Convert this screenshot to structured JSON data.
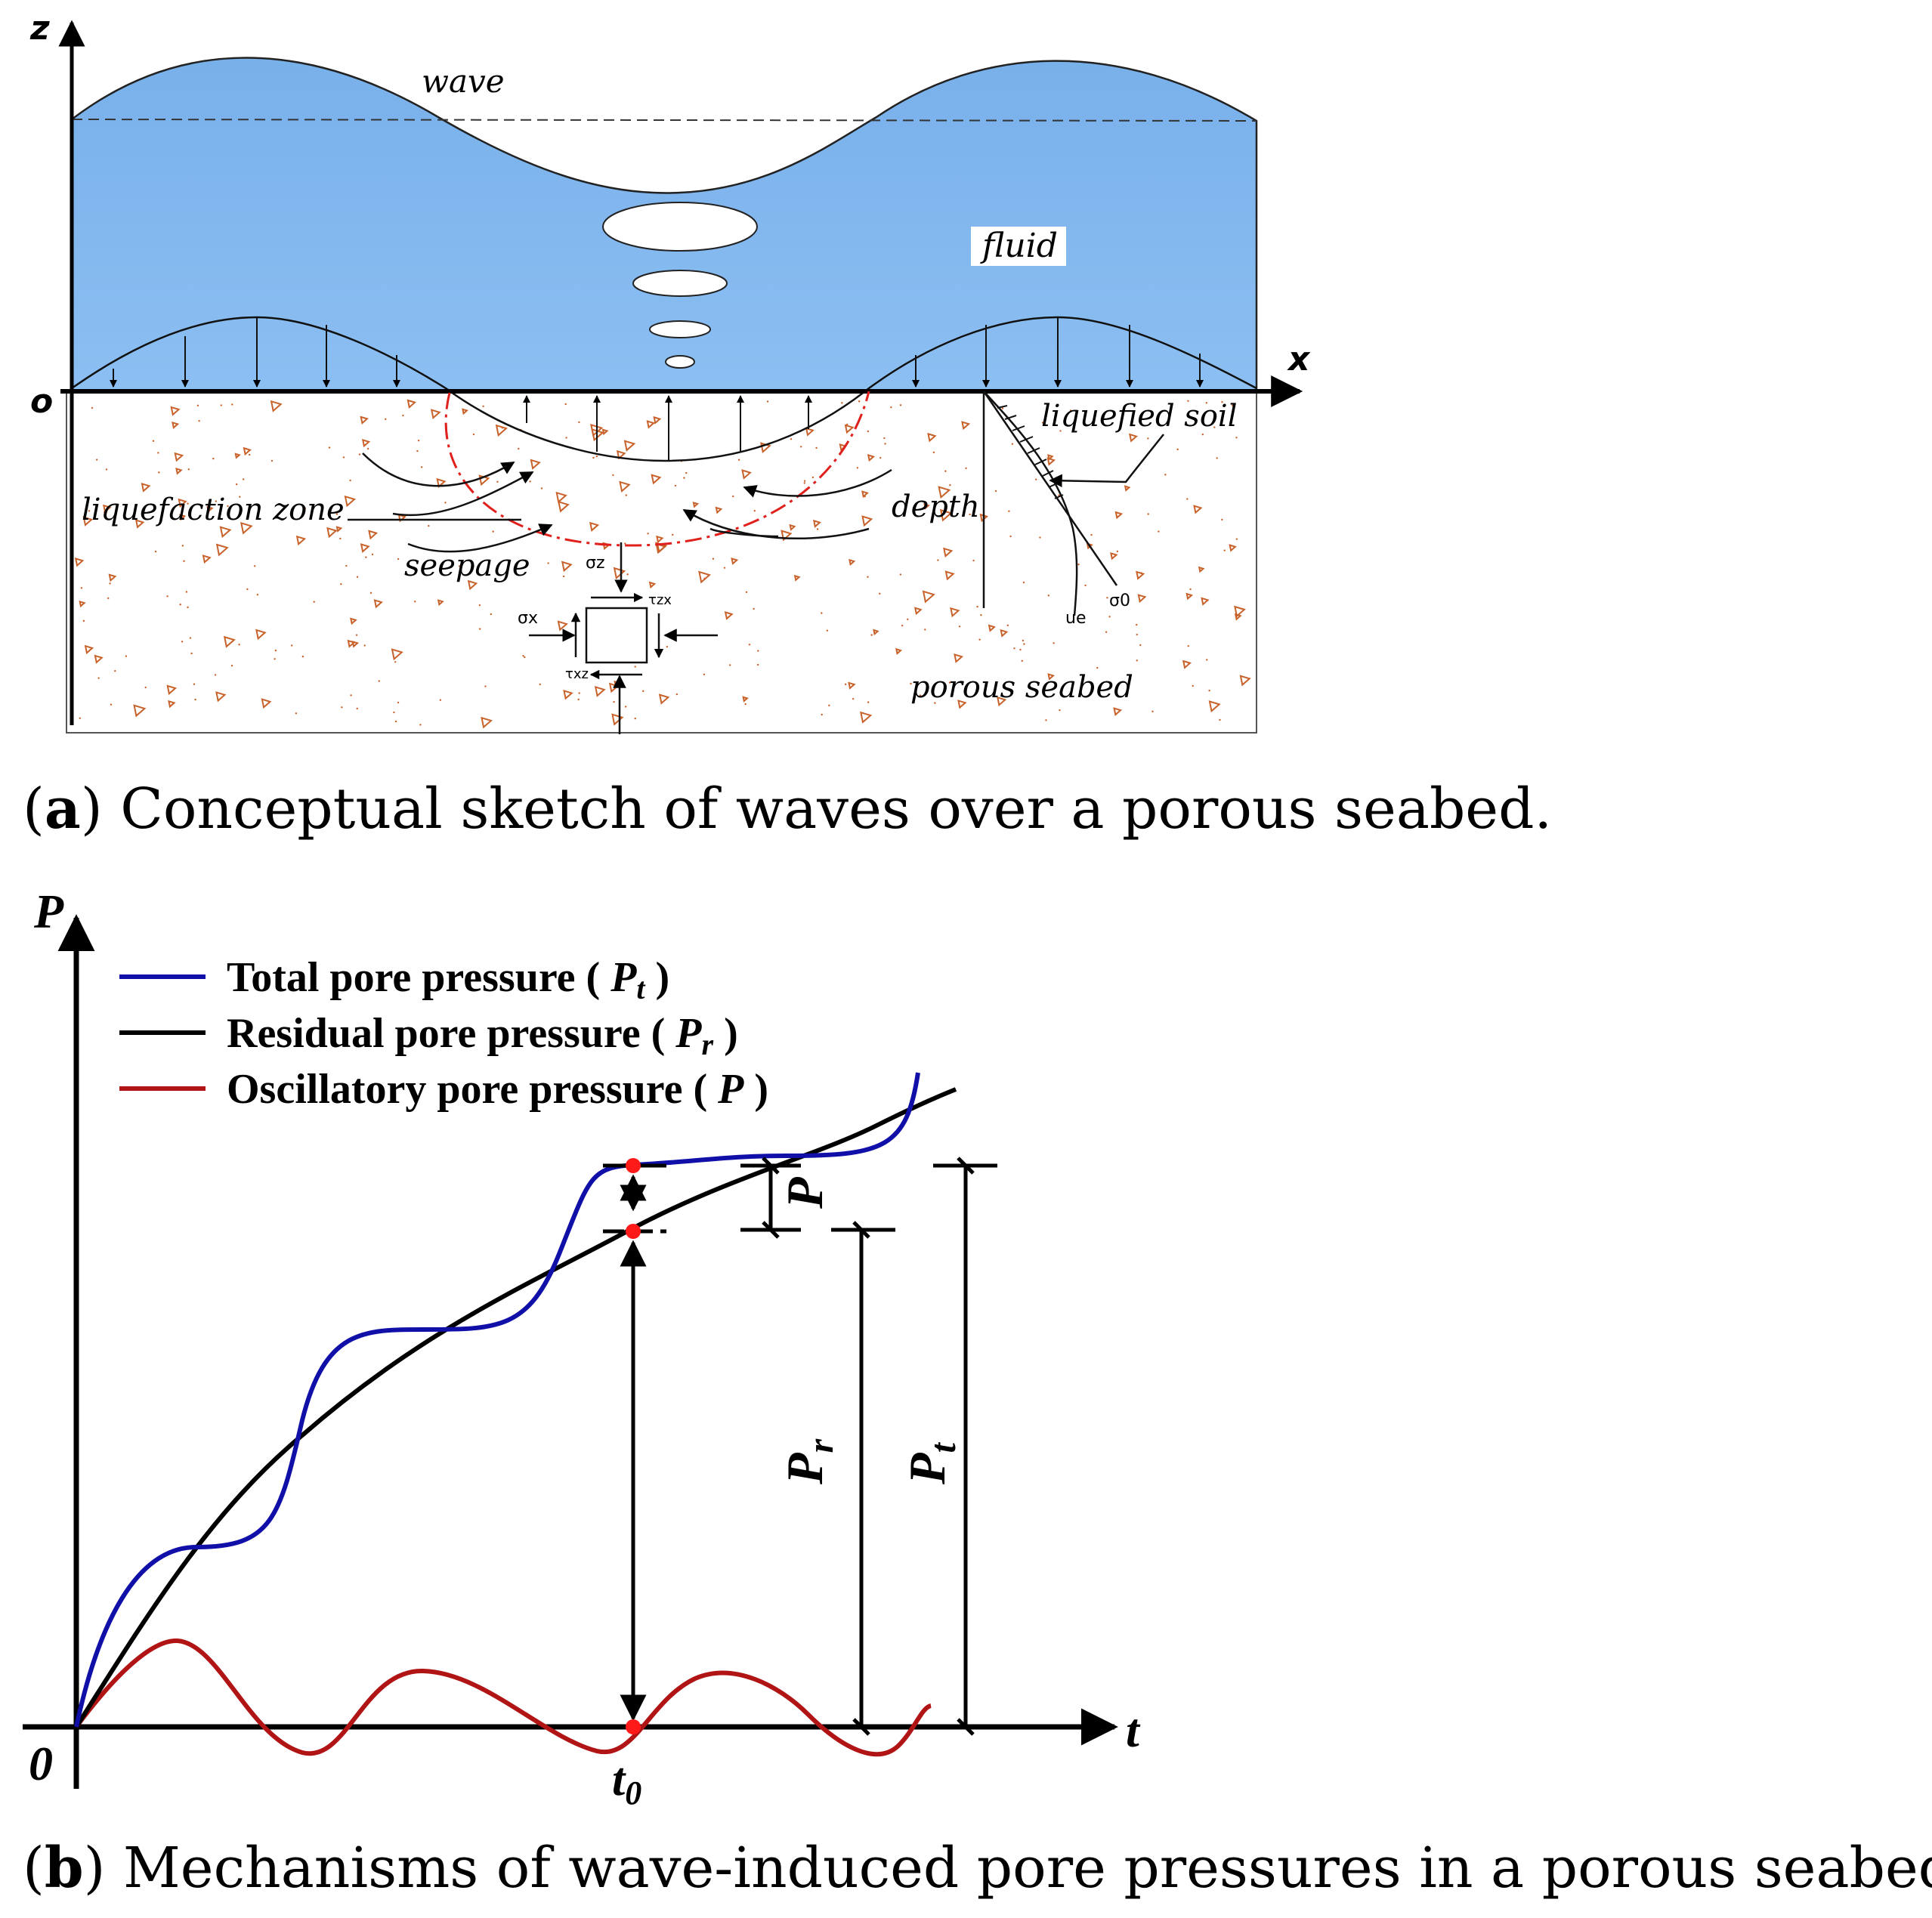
{
  "panel_a": {
    "axis_z": "z",
    "axis_x": "x",
    "origin": "o",
    "wave_label": "wave",
    "fluid_label": "fluid",
    "liquefied_soil_label": "liquefied soil",
    "liquefaction_zone_label": "liquefaction zone",
    "depth_label": "depth",
    "seepage_label": "seepage",
    "porous_seabed_label": "porous seabed",
    "sigma_z": "σz",
    "sigma_x": "σx",
    "tau_zx": "τzx",
    "tau_xz": "τxz",
    "u_e": "ue",
    "sigma_0": "σ0",
    "caption_letter": "a",
    "caption_text": " Conceptual sketch of waves over a porous seabed.",
    "colors": {
      "fluid": "#7ab3ec",
      "liquefaction_zone": "#e0201c",
      "sediment": "#c8622a"
    }
  },
  "panel_b": {
    "axis_y": "P",
    "axis_x": "t",
    "origin": "0",
    "t0_label": "t",
    "t0_sub": "0",
    "legend": [
      {
        "label": "Total pore pressure ( ",
        "symbol": "P",
        "sub": "t",
        "color": "#1010a8"
      },
      {
        "label": "Residual pore pressure ( ",
        "symbol": "P",
        "sub": "r",
        "color": "#000000"
      },
      {
        "label": "Oscillatory pore pressure ( ",
        "symbol": "P",
        "sub": "",
        "color": "#b01414"
      }
    ],
    "dim_P": "P",
    "dim_Pr": "P",
    "dim_Pr_sub": "r",
    "dim_Pt": "P",
    "dim_Pt_sub": "t",
    "caption_letter": "b",
    "caption_text": " Mechanisms of wave-induced pore pressures in a porous seabed."
  }
}
